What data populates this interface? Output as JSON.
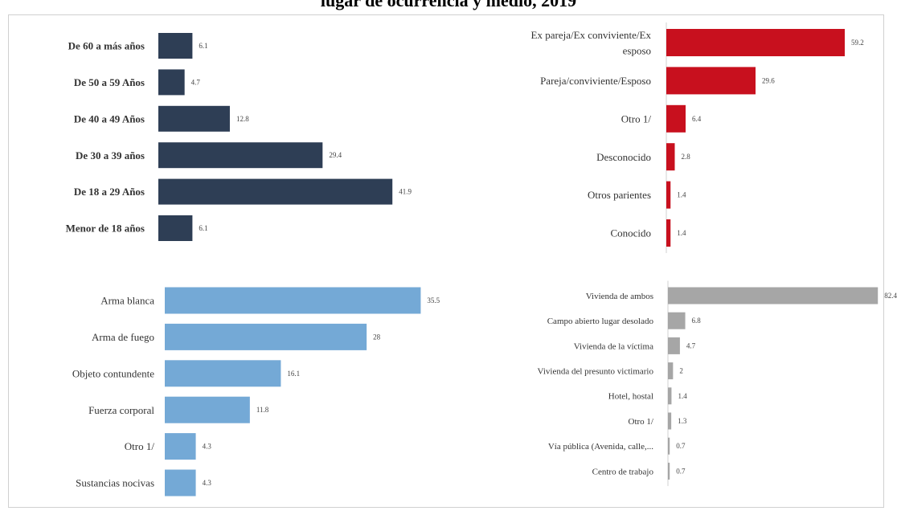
{
  "title": "lugar de ocurrencia y medio, 2019",
  "chart_data": [
    {
      "type": "bar",
      "orientation": "horizontal",
      "categories": [
        "De 60 a más años",
        "De 50 a 59 Años",
        "De 40 a 49 Años",
        "De 30 a 39 años",
        "De 18 a 29 Años",
        "Menor de 18 años"
      ],
      "values": [
        6.1,
        4.7,
        12.8,
        29.4,
        41.9,
        6.1
      ],
      "color": "#2e3e55",
      "bold_labels": true,
      "title": "",
      "xlabel": "",
      "ylabel": ""
    },
    {
      "type": "bar",
      "orientation": "horizontal",
      "categories": [
        "Ex pareja/Ex conviviente/Ex esposo",
        "Pareja/conviviente/Esposo",
        "Otro 1/",
        "Desconocido",
        "Otros parientes",
        "Conocido"
      ],
      "values": [
        59.2,
        29.6,
        6.4,
        2.8,
        1.4,
        1.4
      ],
      "color": "#c8101e",
      "bold_labels": false,
      "title": "",
      "xlabel": "",
      "ylabel": ""
    },
    {
      "type": "bar",
      "orientation": "horizontal",
      "categories": [
        "Arma blanca",
        "Arma de fuego",
        "Objeto contundente",
        "Fuerza corporal",
        "Otro 1/",
        "Sustancias nocivas"
      ],
      "values": [
        35.5,
        28,
        16.1,
        11.8,
        4.3,
        4.3
      ],
      "value_labels": [
        "35.5",
        "28",
        "16.1",
        "11.8",
        "4.3",
        "4.3"
      ],
      "color": "#74a9d6",
      "bold_labels": false,
      "title": "",
      "xlabel": "",
      "ylabel": ""
    },
    {
      "type": "bar",
      "orientation": "horizontal",
      "categories": [
        "Vivienda de ambos",
        "Campo abierto lugar desolado",
        "Vivienda de la víctima",
        "Vivienda del presunto victimario",
        "Hotel, hostal",
        "Otro 1/",
        "Vía pública (Avenida, calle,...",
        "Centro de trabajo"
      ],
      "values": [
        82.4,
        6.8,
        4.7,
        2,
        1.4,
        1.3,
        0.7,
        0.7
      ],
      "value_labels": [
        "82.4",
        "6.8",
        "4.7",
        "2",
        "1.4",
        "1.3",
        "0.7",
        "0.7"
      ],
      "color": "#a6a6a6",
      "bold_labels": false,
      "title": "",
      "xlabel": "",
      "ylabel": ""
    }
  ]
}
